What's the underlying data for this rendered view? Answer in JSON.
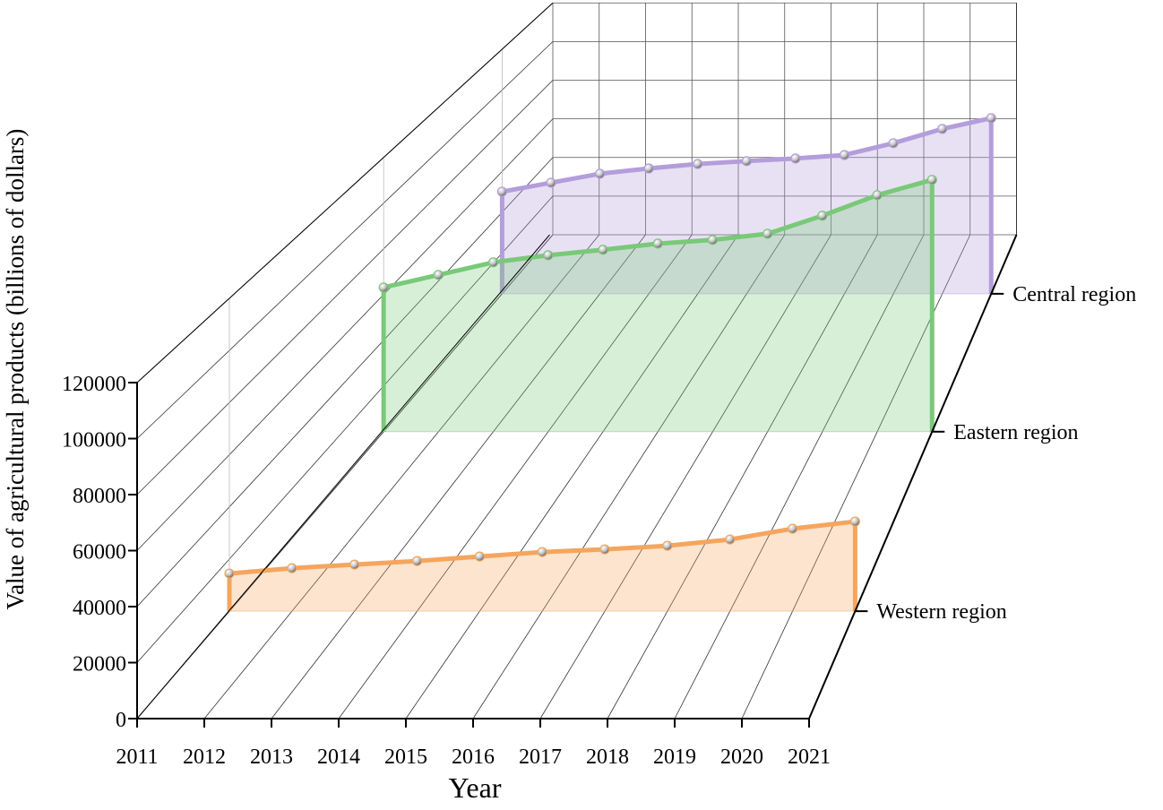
{
  "chart_data": {
    "type": "ribbon3d",
    "x_label": "Year",
    "y_label": "Value of agricultural products (billions of dollars)",
    "x": [
      2011,
      2012,
      2013,
      2014,
      2015,
      2016,
      2017,
      2018,
      2019,
      2020,
      2021
    ],
    "xlim": [
      2011,
      2021
    ],
    "xticks": [
      2011,
      2012,
      2013,
      2014,
      2015,
      2016,
      2017,
      2018,
      2019,
      2020,
      2021
    ],
    "ylim": [
      0,
      120000
    ],
    "yticks": [
      0,
      20000,
      40000,
      60000,
      80000,
      100000,
      120000
    ],
    "grid": true,
    "series": [
      {
        "name": "Western region",
        "color": "#f5a55e",
        "values": [
          14440,
          16500,
          17880,
          19250,
          20970,
          22690,
          23720,
          25100,
          27500,
          31630,
          34380
        ]
      },
      {
        "name": "Eastern region",
        "color": "#79c979",
        "values": [
          63100,
          68600,
          74100,
          77200,
          79600,
          82300,
          83900,
          86600,
          94500,
          103500,
          110200
        ]
      },
      {
        "name": "Central region",
        "color": "#b39ddb",
        "values": [
          50100,
          54500,
          58900,
          61500,
          63700,
          65100,
          66400,
          68100,
          73900,
          80900,
          86200
        ]
      }
    ]
  }
}
